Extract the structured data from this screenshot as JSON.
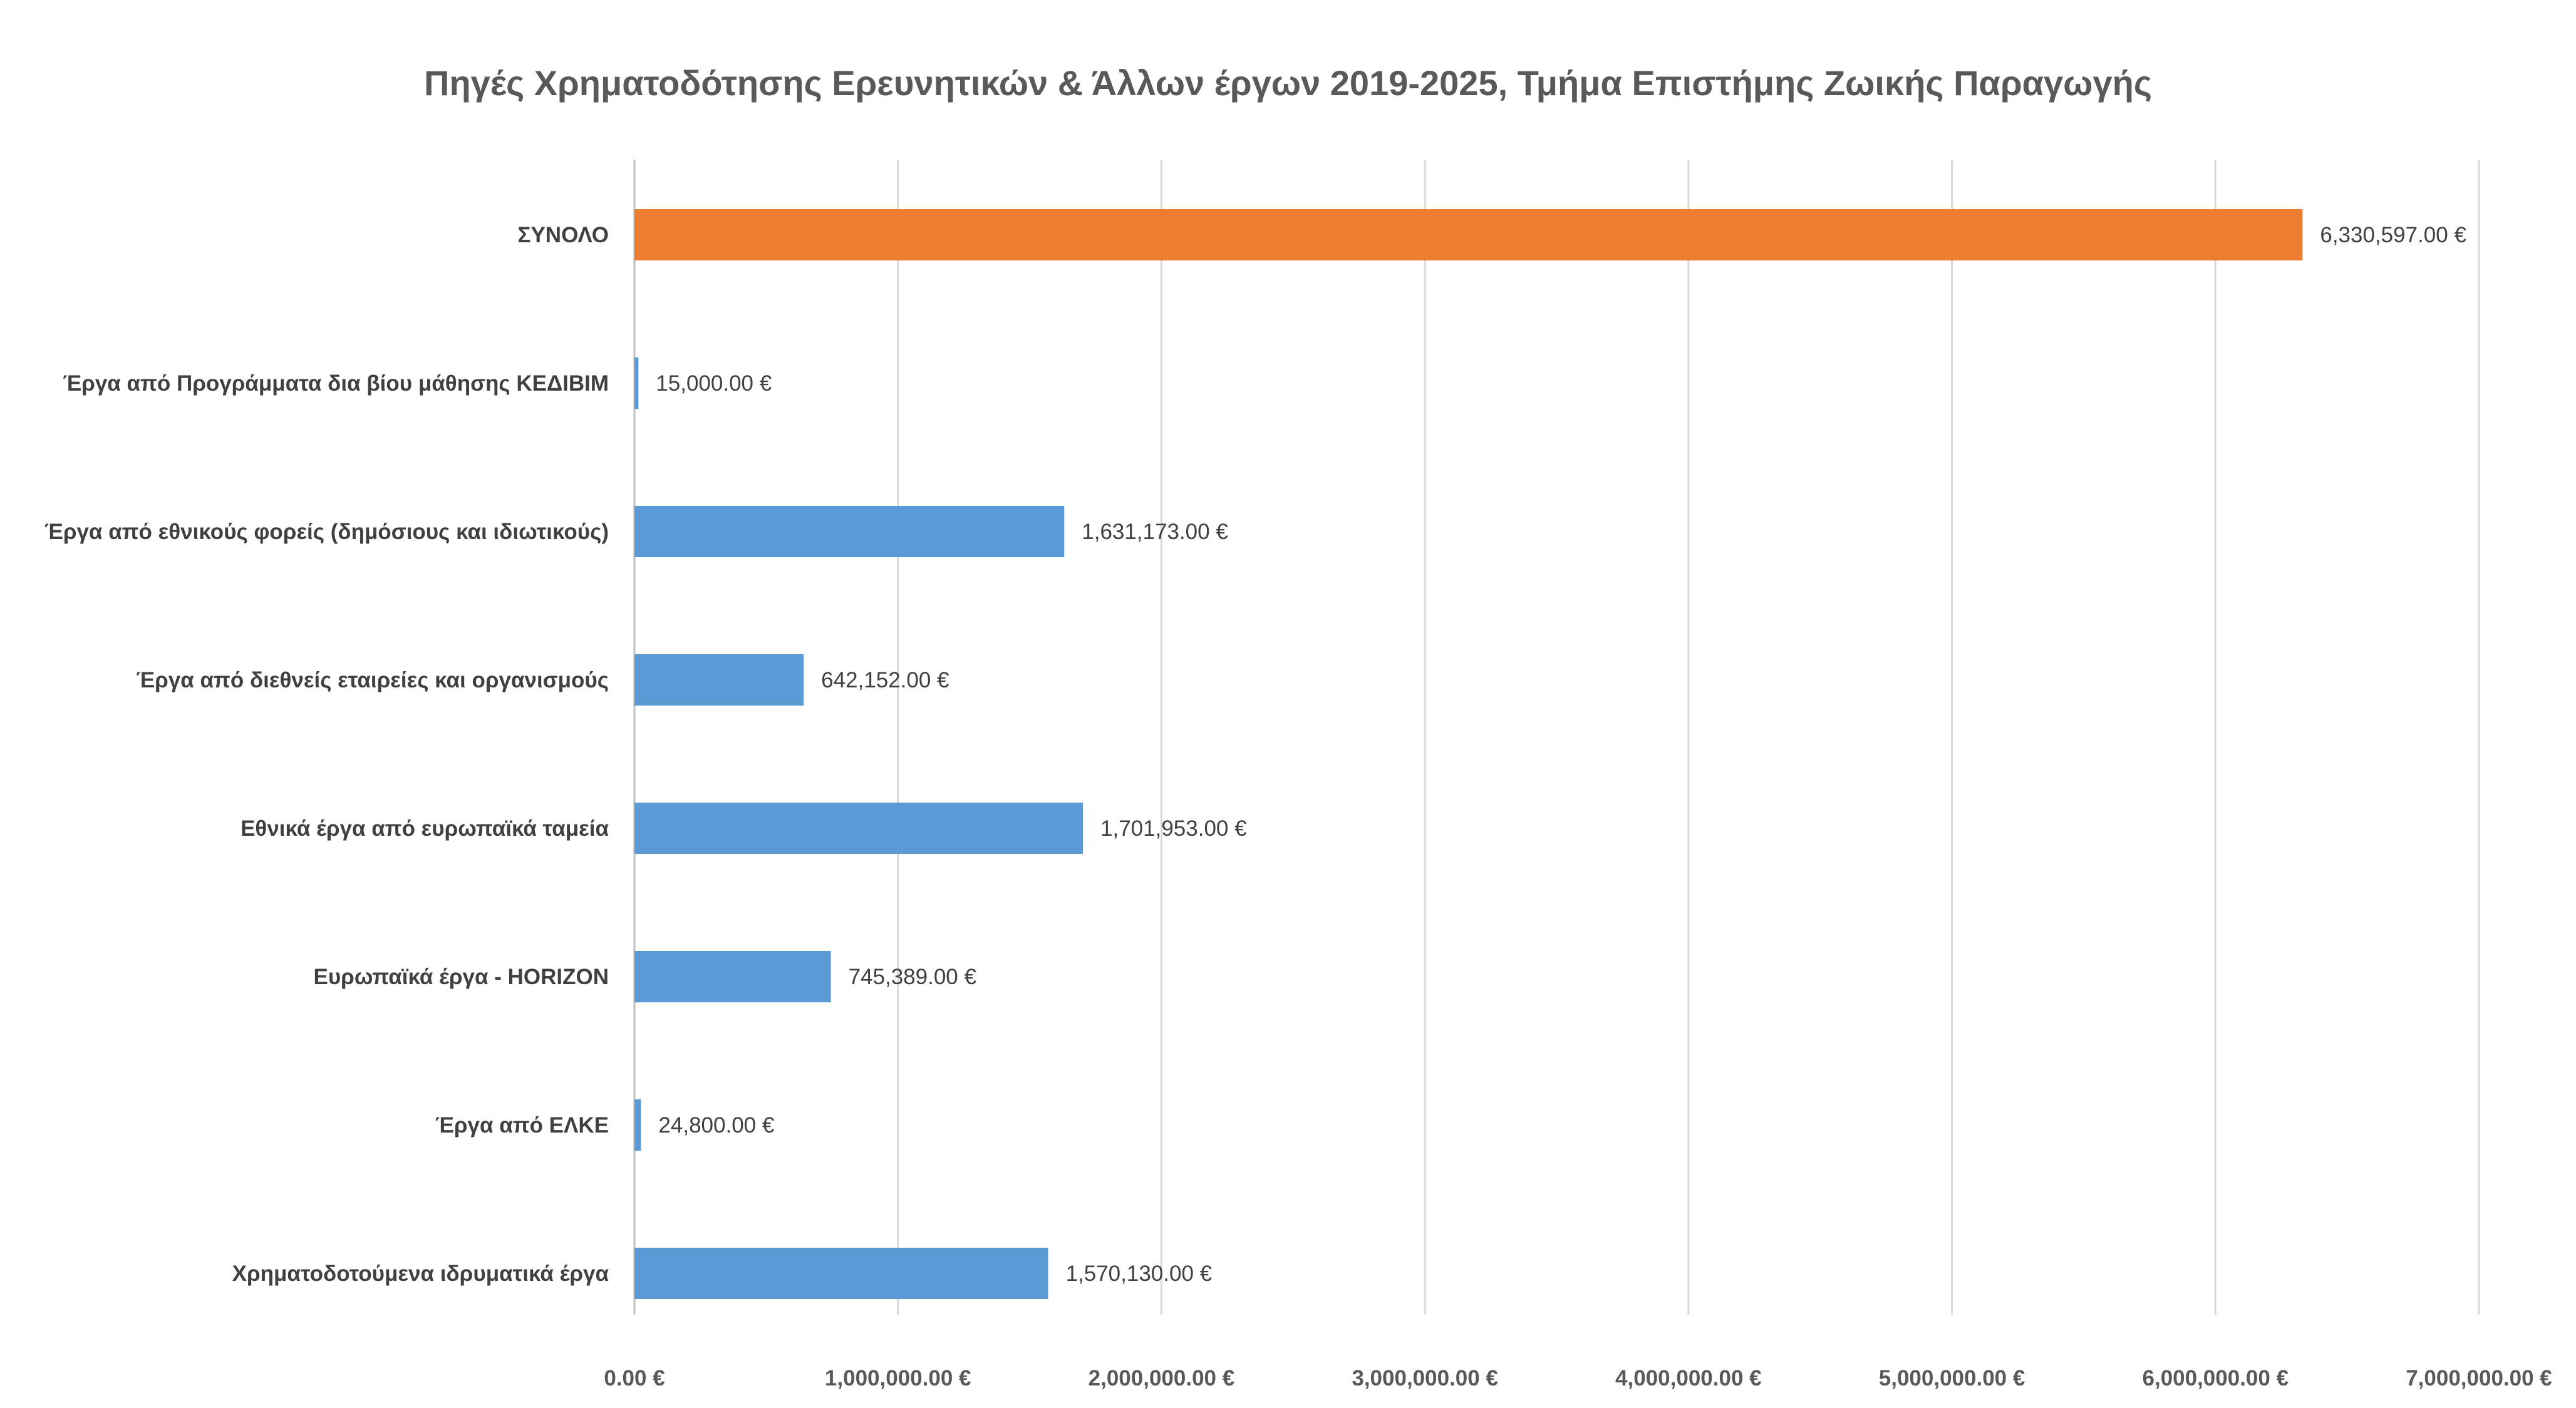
{
  "chart_data": {
    "type": "bar",
    "orientation": "horizontal",
    "title": "Πηγές Χρηματοδότησης Ερευνητικών & Άλλων έργων 2019-2025, Τμήμα Επιστήμης Ζωικής Παραγωγής",
    "xlabel": "",
    "ylabel": "",
    "xlim": [
      0,
      7000000
    ],
    "grid": true,
    "legend": "none",
    "categories": [
      "ΣΥΝΟΛΟ",
      "Έργα από Προγράμματα δια βίου μάθησης ΚΕΔΙΒΙΜ",
      "Έργα από εθνικούς φορείς (δημόσιους και ιδιωτικούς)",
      "Έργα από διεθνείς εταιρείες και οργανισμούς",
      "Εθνικά έργα από ευρωπαϊκά ταμεία",
      "Ευρωπαϊκά έργα - HORIZON",
      "Έργα από ΕΛΚΕ",
      "Χρηματοδοτούμενα ιδρυματικά έργα"
    ],
    "values": [
      6330597,
      15000,
      1631173,
      642152,
      1701953,
      745389,
      24800,
      1570130
    ],
    "value_labels": [
      "6,330,597.00 €",
      "15,000.00 €",
      "1,631,173.00 €",
      "642,152.00 €",
      "1,701,953.00 €",
      "745,389.00 €",
      "24,800.00 €",
      "1,570,130.00 €"
    ],
    "bar_colors": [
      "#ED7D31",
      "#5B9BD5",
      "#5B9BD5",
      "#5B9BD5",
      "#5B9BD5",
      "#5B9BD5",
      "#5B9BD5",
      "#5B9BD5"
    ],
    "ticks": [
      0,
      1000000,
      2000000,
      3000000,
      4000000,
      5000000,
      6000000,
      7000000
    ],
    "tick_labels": [
      "0.00 €",
      "1,000,000.00 €",
      "2,000,000.00 €",
      "3,000,000.00 €",
      "4,000,000.00 €",
      "5,000,000.00 €",
      "6,000,000.00 €",
      "7,000,000.00 €"
    ]
  }
}
